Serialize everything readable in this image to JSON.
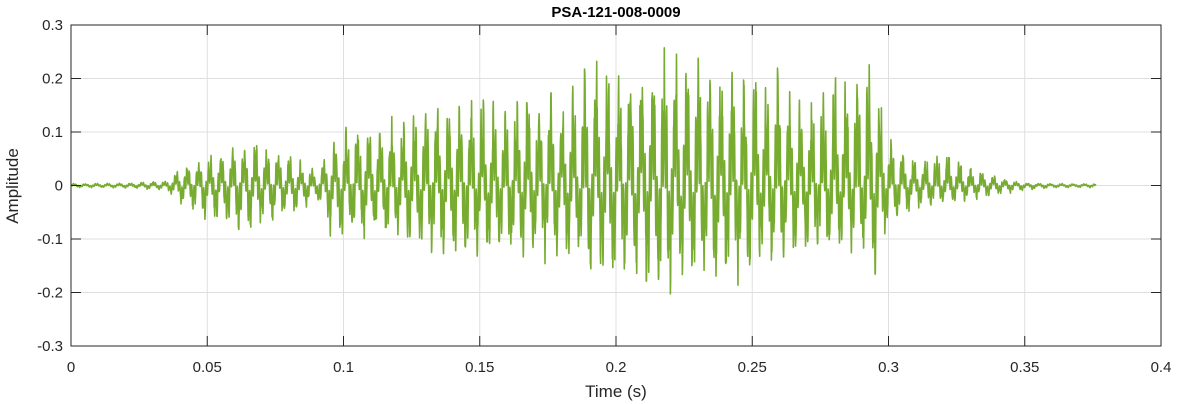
{
  "chart_data": {
    "type": "line",
    "title": "PSA-121-008-0009",
    "xlabel": "Time (s)",
    "ylabel": "Amplitude",
    "xlim": [
      0,
      0.4
    ],
    "ylim": [
      -0.3,
      0.3
    ],
    "x_ticks": [
      0,
      0.05,
      0.1,
      0.15,
      0.2,
      0.25,
      0.3,
      0.35,
      0.4
    ],
    "x_tick_labels": [
      "0",
      "0.05",
      "0.1",
      "0.15",
      "0.2",
      "0.25",
      "0.3",
      "0.35",
      "0.4"
    ],
    "y_ticks": [
      -0.3,
      -0.2,
      -0.1,
      0,
      0.1,
      0.2,
      0.3
    ],
    "y_tick_labels": [
      "-0.3",
      "-0.2",
      "-0.1",
      "0",
      "0.1",
      "0.2",
      "0.3"
    ],
    "grid": true,
    "line_color": "#77AC30",
    "series": [
      {
        "signal_span_s": [
          0,
          0.376
        ],
        "envelope": {
          "t": [
            0,
            0.02,
            0.035,
            0.04,
            0.05,
            0.06,
            0.066,
            0.075,
            0.085,
            0.09,
            0.095,
            0.1,
            0.11,
            0.12,
            0.13,
            0.14,
            0.15,
            0.16,
            0.17,
            0.18,
            0.19,
            0.2,
            0.21,
            0.215,
            0.22,
            0.23,
            0.24,
            0.25,
            0.26,
            0.27,
            0.28,
            0.29,
            0.295,
            0.3,
            0.31,
            0.32,
            0.33,
            0.34,
            0.35,
            0.36,
            0.376
          ],
          "max": [
            0.004,
            0.005,
            0.01,
            0.04,
            0.06,
            0.08,
            0.1,
            0.07,
            0.05,
            0.03,
            0.08,
            0.12,
            0.14,
            0.13,
            0.17,
            0.17,
            0.18,
            0.17,
            0.2,
            0.18,
            0.25,
            0.23,
            0.24,
            0.275,
            0.27,
            0.27,
            0.24,
            0.24,
            0.24,
            0.16,
            0.22,
            0.25,
            0.27,
            0.1,
            0.05,
            0.08,
            0.04,
            0.02,
            0.005,
            0.004,
            0.004
          ],
          "min": [
            -0.004,
            -0.005,
            -0.01,
            -0.04,
            -0.07,
            -0.09,
            -0.105,
            -0.08,
            -0.05,
            -0.03,
            -0.11,
            -0.12,
            -0.11,
            -0.11,
            -0.14,
            -0.15,
            -0.16,
            -0.14,
            -0.16,
            -0.15,
            -0.19,
            -0.19,
            -0.2,
            -0.23,
            -0.22,
            -0.2,
            -0.2,
            -0.18,
            -0.17,
            -0.14,
            -0.15,
            -0.14,
            -0.2,
            -0.08,
            -0.05,
            -0.04,
            -0.03,
            -0.02,
            -0.01,
            -0.005,
            -0.004
          ]
        }
      }
    ]
  }
}
